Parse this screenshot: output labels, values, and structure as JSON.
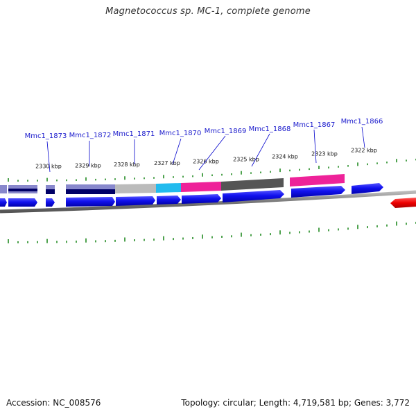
{
  "title": "Magnetococcus sp. MC-1, complete genome",
  "footer": {
    "accession": "Accession: NC_008576",
    "stats": "Topology: circular; Length: 4,719,581 bp; Genes: 3,772"
  },
  "genes": [
    {
      "name": "Mmc1_1873",
      "color": "#0000cc"
    },
    {
      "name": "Mmc1_1872",
      "color": "#0000cc"
    },
    {
      "name": "Mmc1_1871",
      "color": "#0000cc"
    },
    {
      "name": "Mmc1_1870",
      "color": "#0000cc"
    },
    {
      "name": "Mmc1_1869",
      "color": "#0000cc"
    },
    {
      "name": "Mmc1_1868",
      "color": "#0000cc"
    },
    {
      "name": "Mmc1_1867",
      "color": "#0000cc"
    },
    {
      "name": "Mmc1_1866",
      "color": "#0000cc"
    }
  ],
  "kbp_ticks": [
    "2330 kbp",
    "2329 kbp",
    "2328 kbp",
    "2327 kbp",
    "2326 kbp",
    "2325 kbp",
    "2324 kbp",
    "2323 kbp",
    "2322 kbp"
  ],
  "colors": {
    "cds_forward": "#0000ee",
    "cds_reverse_highlight": "#ee0000",
    "cog_light_purple": "#8888cc",
    "cog_navy": "#000066",
    "cog_silver": "#bbbbbb",
    "cog_cyan": "#22bbee",
    "cog_magenta": "#ee2299",
    "cog_dark_gray": "#555555",
    "backbone": "#888888",
    "ticks": "#228b22"
  }
}
